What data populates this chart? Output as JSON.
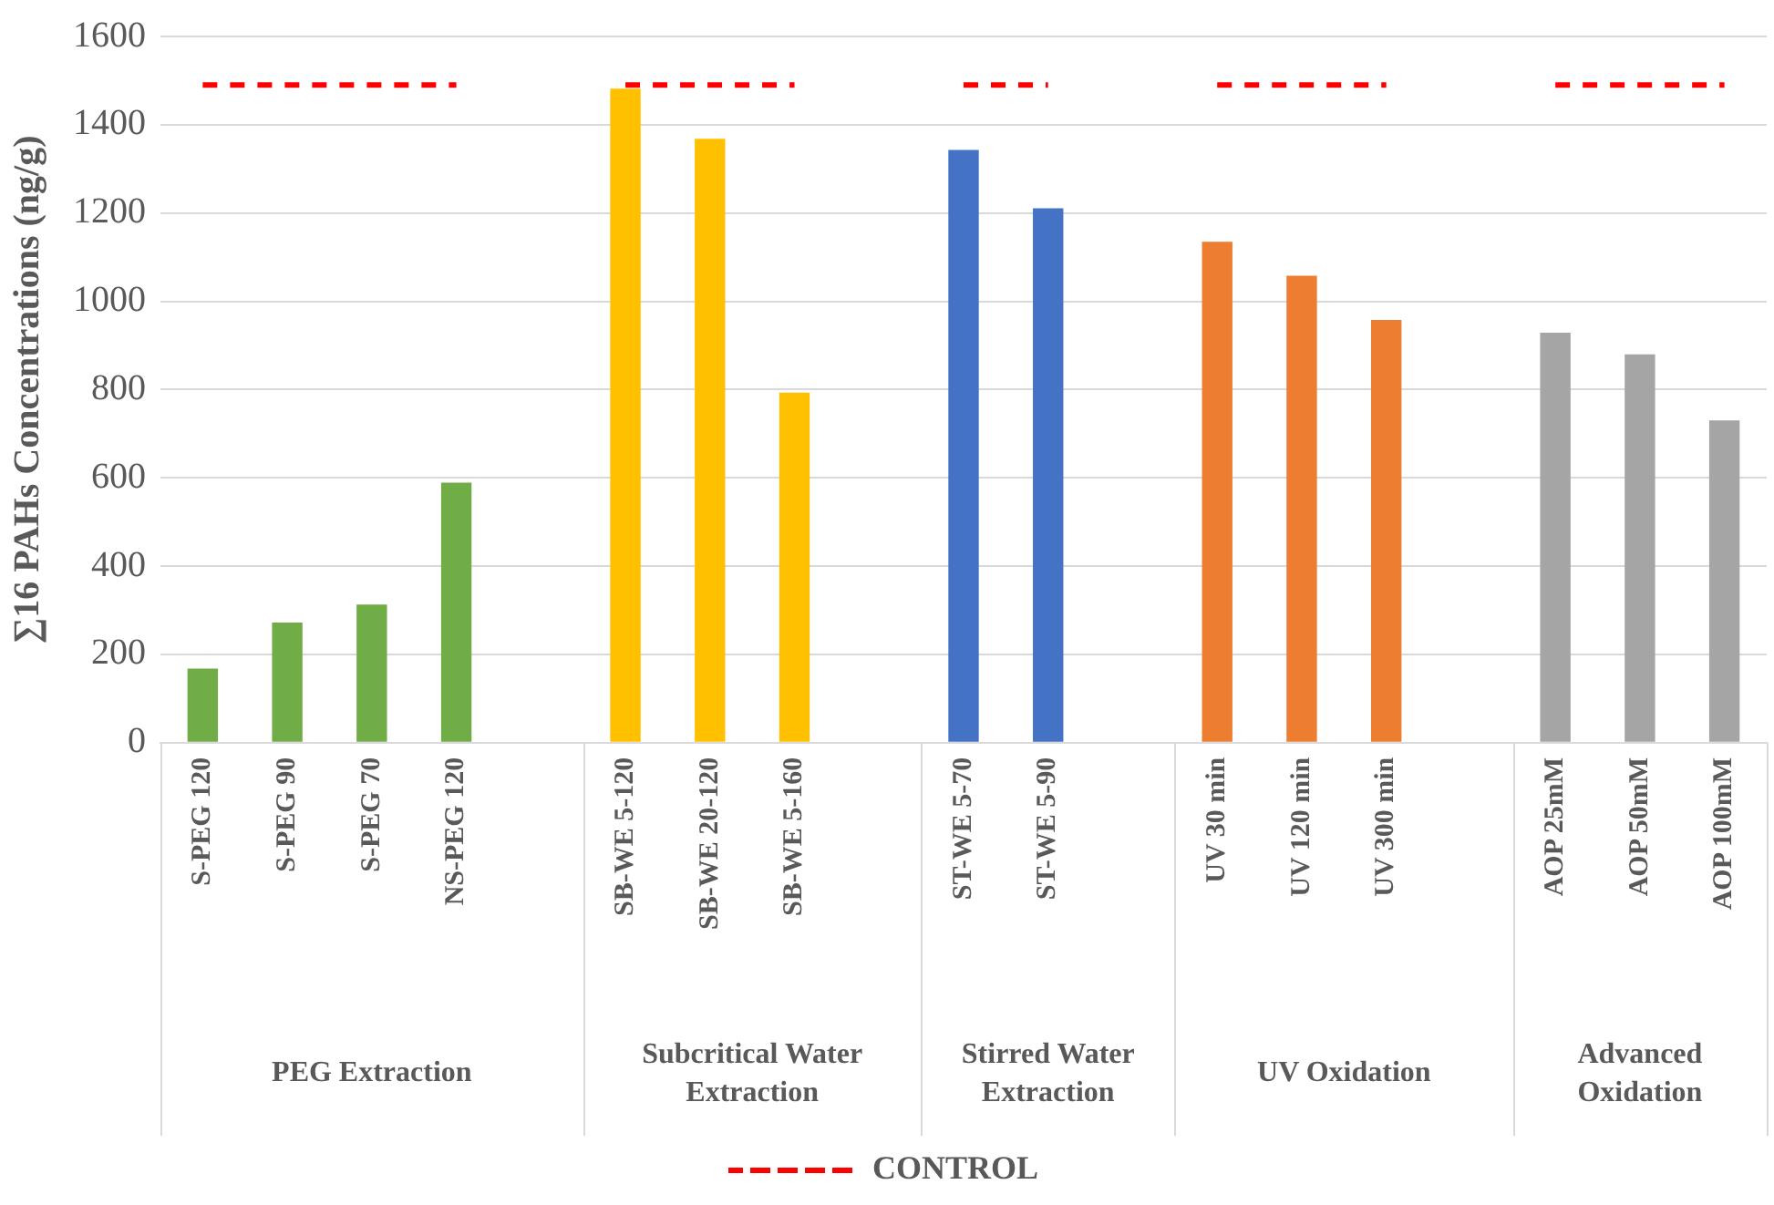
{
  "chart_data": {
    "type": "bar",
    "ylabel": "∑16 PAHs Concentrations (ng/g)",
    "categories": [
      "S-PEG 120",
      "S-PEG 90",
      "S-PEG 70",
      "NS-PEG 120",
      null,
      "SB-WE 5-120",
      "SB-WE 20-120",
      "SB-WE 5-160",
      null,
      "ST-WE 5-70",
      "ST-WE 5-90",
      null,
      "UV 30 min",
      "UV 120 min",
      "UV 300 min",
      null,
      "AOP 25mM",
      "AOP 50mM",
      "AOP 100mM"
    ],
    "series": [
      {
        "colors": [
          "#70ad47",
          "#70ad47",
          "#70ad47",
          "#70ad47",
          null,
          "#ffc000",
          "#ffc000",
          "#ffc000",
          null,
          "#4472c4",
          "#4472c4",
          null,
          "#ed7d31",
          "#ed7d31",
          "#ed7d31",
          null,
          "#a5a5a5",
          "#a5a5a5",
          "#a5a5a5"
        ],
        "values": [
          168,
          272,
          313,
          589,
          null,
          1482,
          1368,
          793,
          null,
          1343,
          1211,
          null,
          1135,
          1058,
          958,
          null,
          929,
          880,
          730
        ]
      },
      {
        "type": "line",
        "name": "CONTROL",
        "color": "#ff0000",
        "line_style": "dashed",
        "marker": "none",
        "values": [
          1490,
          1490,
          1490,
          1490,
          null,
          1490,
          1490,
          1490,
          null,
          1490,
          1490,
          null,
          1490,
          1490,
          1490,
          null,
          1490,
          1490,
          1490
        ]
      }
    ],
    "ylim": [
      0,
      1600
    ],
    "yticks": [
      0,
      200,
      400,
      600,
      800,
      1000,
      1200,
      1400,
      1600
    ],
    "grid": "y",
    "legend": "bottom",
    "annotations": [
      "PEG Extraction",
      "Subcritical Water Extraction",
      "Stirred Water Extraction",
      "UV Oxidation",
      "Advanced Oxidation"
    ]
  }
}
